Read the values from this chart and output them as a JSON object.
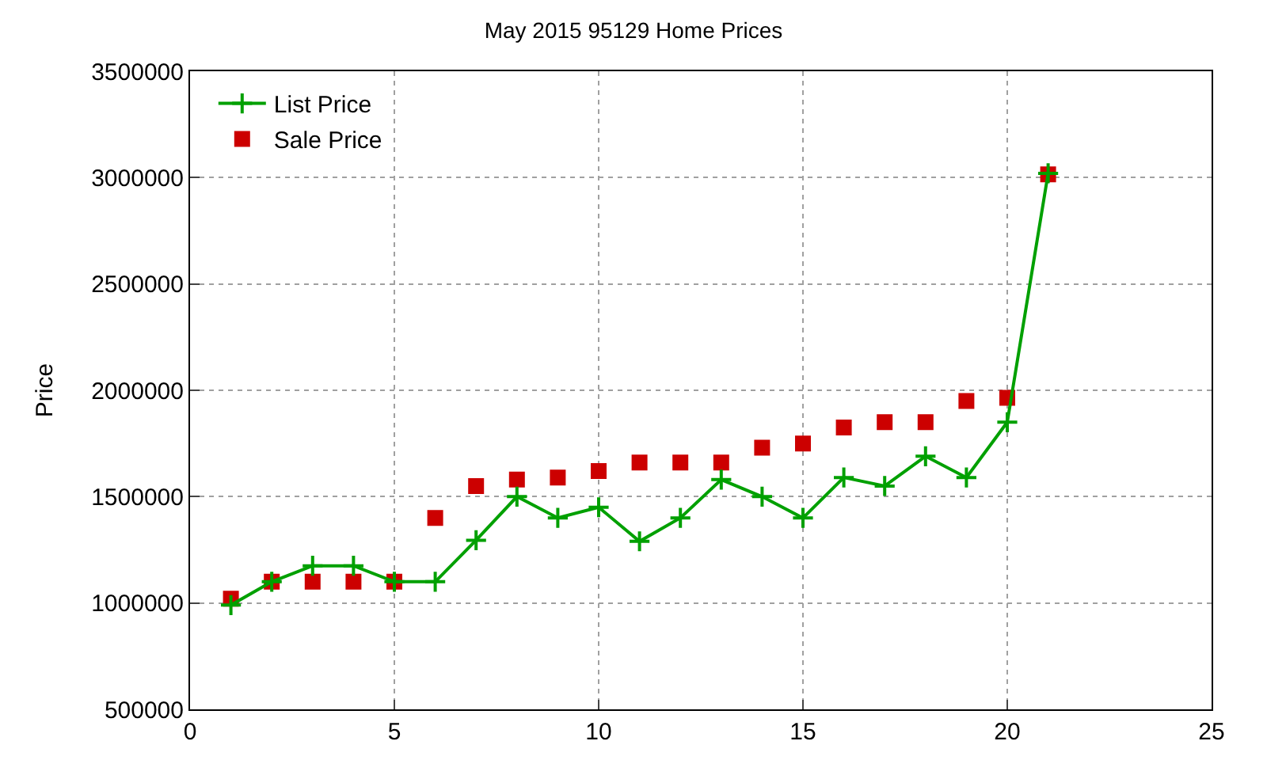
{
  "chart_data": {
    "type": "line",
    "title": "May 2015 95129 Home Prices",
    "ylabel": "Price",
    "x": [
      1,
      2,
      3,
      4,
      5,
      6,
      7,
      8,
      9,
      10,
      11,
      12,
      13,
      14,
      15,
      16,
      17,
      18,
      19,
      20,
      21
    ],
    "series": [
      {
        "name": "List Price",
        "type": "line",
        "color": "#00a000",
        "marker": "cross",
        "values": [
          990000,
          1100000,
          1175000,
          1175000,
          1100000,
          1100000,
          1295000,
          1500000,
          1400000,
          1450000,
          1290000,
          1400000,
          1580000,
          1500000,
          1400000,
          1590000,
          1550000,
          1690000,
          1590000,
          1850000,
          3020000
        ]
      },
      {
        "name": "Sale Price",
        "type": "scatter",
        "color": "#cc0000",
        "marker": "square",
        "values": [
          1020000,
          1100000,
          1100000,
          1100000,
          1100000,
          1400000,
          1550000,
          1580000,
          1590000,
          1620000,
          1660000,
          1660000,
          1660000,
          1730000,
          1750000,
          1825000,
          1850000,
          1850000,
          1950000,
          1965000,
          3015000
        ]
      }
    ],
    "xlim": [
      0,
      25
    ],
    "xticks": [
      0,
      5,
      10,
      15,
      20,
      25
    ],
    "ylim": [
      500000,
      3500000
    ],
    "yticks": [
      500000,
      1000000,
      1500000,
      2000000,
      2500000,
      3000000,
      3500000
    ],
    "grid": true,
    "legend": "top left"
  }
}
